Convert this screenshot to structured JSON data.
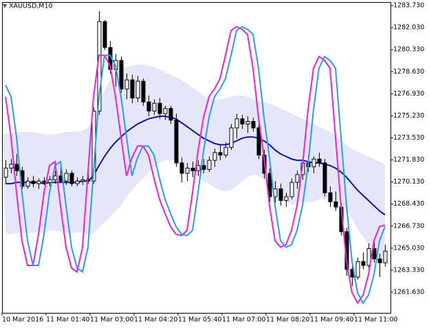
{
  "chart_data": {
    "type": "candlestick",
    "title": "XAUUSD,M10",
    "categories": [
      "10 Mar 2016",
      null,
      null,
      null,
      null,
      null,
      null,
      null,
      "11 Mar 01:40",
      null,
      null,
      null,
      null,
      null,
      null,
      null,
      "11 Mar 03:00",
      null,
      null,
      null,
      null,
      null,
      null,
      null,
      "11 Mar 04:20",
      null,
      null,
      null,
      null,
      null,
      null,
      null,
      "11 Mar 05:40",
      null,
      null,
      null,
      null,
      null,
      null,
      null,
      "11 Mar 07:00",
      null,
      null,
      null,
      null,
      null,
      null,
      null,
      "11 Mar 08:20",
      null,
      null,
      null,
      null,
      null,
      null,
      null,
      "11 Mar 09:40",
      null,
      null,
      null,
      null,
      null,
      null,
      null,
      "11 Mar 11:00",
      null,
      null,
      null,
      null,
      null
    ],
    "open": [
      1270.5,
      1271.2,
      1271.5,
      1271.0,
      1269.8,
      1270.2,
      1270.0,
      1270.2,
      1270.1,
      1270.3,
      1270.6,
      1270.2,
      1270.8,
      1270.0,
      1270.2,
      1270.3,
      1270.2,
      1275.6,
      1282.5,
      1280.5,
      1278.8,
      1279.5,
      1277.3,
      1278.0,
      1276.6,
      1277.9,
      1276.3,
      1275.6,
      1276.2,
      1275.4,
      1275.8,
      1274.9,
      1271.6,
      1270.8,
      1271.2,
      1271.0,
      1271.4,
      1271.1,
      1271.8,
      1272.4,
      1272.2,
      1272.8,
      1274.3,
      1275.0,
      1274.6,
      1274.8,
      1274.3,
      1272.2,
      1270.8,
      1269.0,
      1269.6,
      1268.7,
      1269.0,
      1270.1,
      1270.7,
      1271.6,
      1271.3,
      1271.9,
      1271.6,
      1269.3,
      1268.6,
      1268.2,
      1266.3,
      1263.4,
      1262.8,
      1264.0,
      1263.7,
      1265.0,
      1264.2,
      1263.9
    ],
    "high": [
      1271.8,
      1271.9,
      1272.3,
      1271.3,
      1270.5,
      1270.6,
      1270.4,
      1270.5,
      1270.6,
      1271.0,
      1271.3,
      1271.1,
      1271.0,
      1270.5,
      1270.6,
      1271.0,
      1275.9,
      1283.3,
      1282.6,
      1281.0,
      1280.0,
      1279.8,
      1278.5,
      1278.4,
      1278.3,
      1278.1,
      1276.8,
      1276.5,
      1276.6,
      1276.0,
      1276.0,
      1275.4,
      1272.0,
      1271.6,
      1271.7,
      1271.8,
      1271.9,
      1272.1,
      1272.7,
      1273.0,
      1273.2,
      1274.6,
      1275.4,
      1275.3,
      1275.2,
      1275.1,
      1274.6,
      1272.6,
      1271.2,
      1270.2,
      1270.0,
      1269.3,
      1270.4,
      1271.0,
      1272.0,
      1272.2,
      1272.1,
      1272.4,
      1271.9,
      1269.8,
      1269.4,
      1268.5,
      1266.6,
      1264.0,
      1264.3,
      1264.7,
      1265.4,
      1265.5,
      1264.6,
      1265.3
    ],
    "low": [
      1270.0,
      1270.8,
      1270.6,
      1269.6,
      1269.6,
      1269.7,
      1269.6,
      1269.9,
      1269.8,
      1270.0,
      1270.1,
      1269.9,
      1269.8,
      1269.8,
      1269.9,
      1270.0,
      1270.0,
      1275.3,
      1280.3,
      1278.5,
      1277.5,
      1277.0,
      1276.5,
      1276.2,
      1276.3,
      1276.0,
      1275.2,
      1275.3,
      1275.0,
      1274.9,
      1274.6,
      1271.3,
      1270.1,
      1270.2,
      1270.5,
      1270.6,
      1270.8,
      1270.9,
      1271.3,
      1271.8,
      1272.0,
      1272.6,
      1273.5,
      1274.2,
      1273.9,
      1274.0,
      1271.9,
      1270.4,
      1268.6,
      1268.5,
      1268.3,
      1268.2,
      1268.8,
      1269.6,
      1270.3,
      1270.9,
      1270.8,
      1271.3,
      1269.0,
      1268.2,
      1267.9,
      1266.0,
      1262.9,
      1262.1,
      1262.6,
      1263.4,
      1263.5,
      1263.9,
      1262.8,
      1263.6
    ],
    "close": [
      1271.2,
      1271.5,
      1271.0,
      1269.8,
      1270.2,
      1270.0,
      1270.2,
      1270.1,
      1270.3,
      1270.6,
      1270.2,
      1270.8,
      1270.0,
      1270.2,
      1270.3,
      1270.2,
      1275.6,
      1282.5,
      1280.5,
      1278.8,
      1279.5,
      1277.3,
      1278.0,
      1276.6,
      1277.9,
      1276.3,
      1275.6,
      1276.2,
      1275.4,
      1275.8,
      1274.9,
      1271.6,
      1270.8,
      1271.2,
      1271.0,
      1271.4,
      1271.1,
      1271.8,
      1272.4,
      1272.2,
      1272.8,
      1274.3,
      1275.0,
      1274.6,
      1274.8,
      1274.3,
      1272.2,
      1270.8,
      1269.0,
      1269.6,
      1268.7,
      1269.0,
      1270.1,
      1270.7,
      1271.6,
      1271.3,
      1271.9,
      1271.6,
      1269.3,
      1268.6,
      1268.2,
      1266.3,
      1263.4,
      1262.8,
      1264.0,
      1263.7,
      1265.0,
      1264.2,
      1263.9,
      1264.8
    ],
    "up_color": "#ffffff",
    "down_color": "#000000",
    "outline_color": "#000000",
    "band": {
      "color": "#e6e6fa",
      "upper": [
        1273.8,
        1273.9,
        1274.0,
        1274.0,
        1274.0,
        1274.0,
        1273.9,
        1273.8,
        1273.8,
        1273.8,
        1273.9,
        1274.0,
        1274.0,
        1274.0,
        1274.1,
        1274.3,
        1275.0,
        1276.2,
        1277.2,
        1278.0,
        1278.5,
        1278.9,
        1279.0,
        1279.1,
        1279.2,
        1279.2,
        1279.1,
        1279.0,
        1278.8,
        1278.6,
        1278.4,
        1278.2,
        1278.0,
        1277.7,
        1277.4,
        1277.1,
        1276.8,
        1276.6,
        1276.5,
        1276.5,
        1276.6,
        1276.7,
        1276.8,
        1276.8,
        1276.7,
        1276.5,
        1276.4,
        1276.3,
        1276.2,
        1276.0,
        1275.8,
        1275.6,
        1275.4,
        1275.2,
        1275.0,
        1274.8,
        1274.6,
        1274.4,
        1274.2,
        1274.0,
        1273.7,
        1273.3,
        1273.0,
        1272.7,
        1272.5,
        1272.3,
        1272.1,
        1271.9,
        1271.7,
        1271.5
      ],
      "lower": [
        1266.2,
        1266.1,
        1266.2,
        1266.2,
        1266.2,
        1266.2,
        1266.3,
        1266.2,
        1266.4,
        1266.4,
        1266.3,
        1266.2,
        1266.2,
        1266.2,
        1266.3,
        1266.1,
        1266.2,
        1266.6,
        1267.0,
        1267.4,
        1267.9,
        1268.3,
        1269.0,
        1269.5,
        1270.0,
        1270.4,
        1270.9,
        1271.2,
        1271.6,
        1271.8,
        1271.8,
        1271.8,
        1271.4,
        1271.1,
        1270.8,
        1270.5,
        1270.2,
        1270.0,
        1269.7,
        1269.5,
        1269.4,
        1269.5,
        1269.8,
        1270.2,
        1270.5,
        1270.7,
        1270.6,
        1270.3,
        1269.8,
        1269.2,
        1268.8,
        1268.6,
        1268.4,
        1268.4,
        1268.6,
        1268.6,
        1268.6,
        1268.8,
        1268.8,
        1268.8,
        1268.7,
        1268.5,
        1268.0,
        1267.3,
        1266.5,
        1265.9,
        1265.3,
        1264.7,
        1264.1,
        1263.7
      ]
    },
    "lines": [
      {
        "color": "#0b13a3",
        "values": [
          1270.0,
          1270.0,
          1270.1,
          1270.1,
          1270.1,
          1270.1,
          1270.1,
          1270.0,
          1270.1,
          1270.1,
          1270.1,
          1270.1,
          1270.1,
          1270.1,
          1270.2,
          1270.2,
          1270.6,
          1271.4,
          1272.1,
          1272.7,
          1273.2,
          1273.6,
          1274.0,
          1274.3,
          1274.6,
          1274.8,
          1275.0,
          1275.1,
          1275.2,
          1275.2,
          1275.1,
          1275.0,
          1274.7,
          1274.4,
          1274.1,
          1273.8,
          1273.5,
          1273.3,
          1273.1,
          1273.0,
          1273.0,
          1273.1,
          1273.3,
          1273.5,
          1273.6,
          1273.6,
          1273.5,
          1273.3,
          1273.0,
          1272.6,
          1272.3,
          1272.1,
          1271.9,
          1271.8,
          1271.8,
          1271.7,
          1271.6,
          1271.6,
          1271.5,
          1271.4,
          1271.2,
          1270.9,
          1270.5,
          1270.0,
          1269.5,
          1269.1,
          1268.7,
          1268.3,
          1267.9,
          1267.6
        ]
      },
      {
        "color": "#e620e6",
        "values": [
          1276.7,
          1273.6,
          1269.3,
          1265.6,
          1263.7,
          1263.7,
          1266.1,
          1269.3,
          1271.4,
          1271.7,
          1268.3,
          1265.1,
          1263.5,
          1263.2,
          1265.1,
          1270.9,
          1276.7,
          1279.9,
          1279.9,
          1279.1,
          1276.7,
          1273.6,
          1270.6,
          1272.0,
          1272.9,
          1272.9,
          1272.2,
          1270.4,
          1268.8,
          1267.7,
          1266.7,
          1266.1,
          1266.0,
          1266.4,
          1269.3,
          1272.5,
          1275.1,
          1276.7,
          1277.3,
          1278.1,
          1279.9,
          1281.8,
          1282.1,
          1281.9,
          1281.5,
          1278.9,
          1275.1,
          1272.0,
          1268.3,
          1265.6,
          1265.1,
          1265.3,
          1266.4,
          1268.3,
          1271.4,
          1275.7,
          1278.9,
          1279.8,
          1279.5,
          1278.9,
          1273.6,
          1268.3,
          1264.0,
          1261.6,
          1260.8,
          1261.4,
          1263.0,
          1265.6,
          1266.7,
          1266.8
        ]
      },
      {
        "color": "#2f98e6",
        "values": [
          1277.6,
          1276.7,
          1273.6,
          1269.3,
          1265.6,
          1263.7,
          1263.7,
          1266.1,
          1269.3,
          1271.4,
          1271.7,
          1268.3,
          1265.1,
          1263.5,
          1263.2,
          1265.1,
          1270.9,
          1276.7,
          1279.9,
          1279.9,
          1279.1,
          1276.7,
          1273.6,
          1270.6,
          1272.0,
          1272.9,
          1272.9,
          1272.2,
          1270.4,
          1268.8,
          1267.7,
          1266.7,
          1266.1,
          1266.0,
          1266.4,
          1269.3,
          1272.5,
          1275.1,
          1276.7,
          1277.3,
          1278.1,
          1279.9,
          1281.8,
          1282.1,
          1281.9,
          1281.5,
          1278.9,
          1275.1,
          1272.0,
          1268.3,
          1265.6,
          1265.1,
          1265.3,
          1266.4,
          1268.3,
          1271.4,
          1275.7,
          1278.9,
          1279.8,
          1279.5,
          1278.9,
          1273.6,
          1268.3,
          1264.0,
          1261.6,
          1260.8,
          1261.4,
          1263.0,
          1265.6,
          1266.7
        ]
      }
    ],
    "ylim": [
      1260.04,
      1284.0
    ],
    "yticks": [
      {
        "value": 1261.63,
        "label": "1261.630"
      },
      {
        "value": 1263.33,
        "label": "1263.330"
      },
      {
        "value": 1265.03,
        "label": "1265.030"
      },
      {
        "value": 1266.73,
        "label": "1266.730"
      },
      {
        "value": 1268.43,
        "label": "1268.430"
      },
      {
        "value": 1270.13,
        "label": "1270.130"
      },
      {
        "value": 1271.83,
        "label": "1271.830"
      },
      {
        "value": 1273.53,
        "label": "1273.530"
      },
      {
        "value": 1275.23,
        "label": "1275.230"
      },
      {
        "value": 1276.93,
        "label": "1276.930"
      },
      {
        "value": 1278.63,
        "label": "1278.630"
      },
      {
        "value": 1280.33,
        "label": "1280.330"
      },
      {
        "value": 1282.03,
        "label": "1282.030"
      },
      {
        "value": 1283.73,
        "label": "1283.730"
      }
    ],
    "grid": false
  }
}
